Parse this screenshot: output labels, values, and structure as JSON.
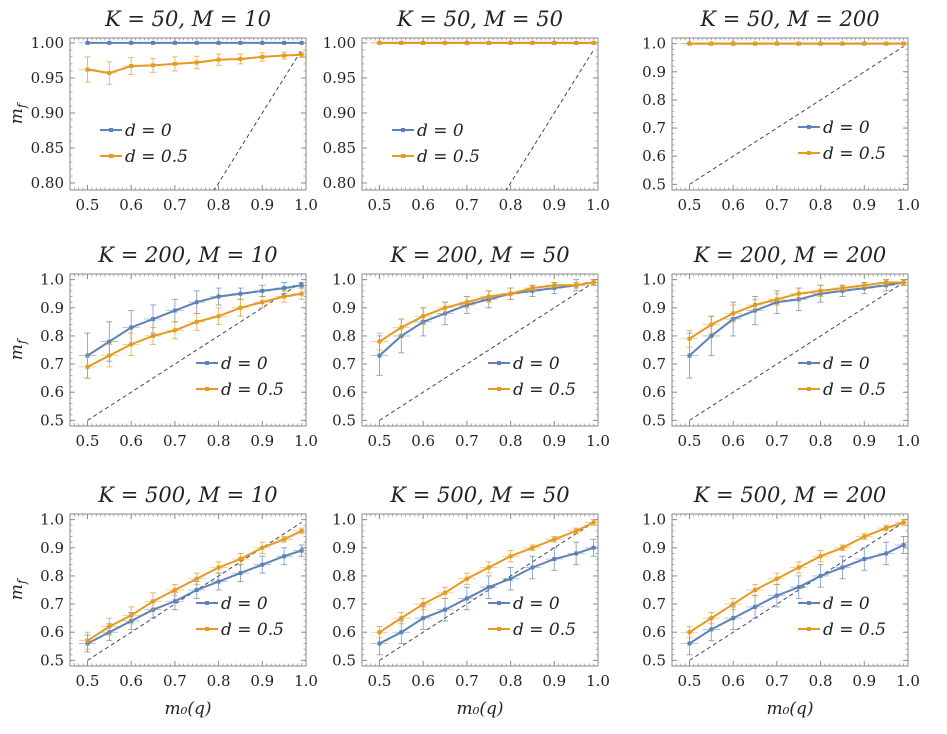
{
  "colors": {
    "d0": "#5d82b7",
    "d05": "#e59a22",
    "frame": "#8a8a8a",
    "diag": "#333333"
  },
  "chart_data": [
    {
      "type": "line",
      "title": "K = 50, M = 10",
      "ylabel": "m_f",
      "xlabel": "",
      "xlim": [
        0.46,
        1.0
      ],
      "ylim": [
        0.79,
        1.007
      ],
      "xticks": [
        "0.5",
        "0.6",
        "0.7",
        "0.8",
        "0.9",
        "1.0"
      ],
      "yticks": [
        "0.80",
        "0.85",
        "0.90",
        "0.95",
        "1.00"
      ],
      "x": [
        0.5,
        0.55,
        0.6,
        0.65,
        0.7,
        0.75,
        0.8,
        0.85,
        0.9,
        0.95,
        0.99
      ],
      "series": [
        {
          "name": "d = 0",
          "color": "#5d82b7",
          "values": [
            1.0,
            1.0,
            1.0,
            1.0,
            1.0,
            1.0,
            1.0,
            1.0,
            1.0,
            1.0,
            1.0
          ],
          "err": [
            0,
            0,
            0,
            0,
            0,
            0,
            0,
            0,
            0,
            0,
            0
          ]
        },
        {
          "name": "d = 0.5",
          "color": "#e59a22",
          "values": [
            0.962,
            0.957,
            0.967,
            0.968,
            0.97,
            0.972,
            0.976,
            0.977,
            0.98,
            0.982,
            0.983
          ],
          "err": [
            0.018,
            0.016,
            0.012,
            0.01,
            0.01,
            0.009,
            0.008,
            0.007,
            0.006,
            0.005,
            0.004
          ]
        }
      ],
      "legend": [
        "d = 0",
        "d = 0.5"
      ],
      "legend_position": "lower-left",
      "diagonal": true
    },
    {
      "type": "line",
      "title": "K = 50, M = 50",
      "ylabel": "",
      "xlabel": "",
      "xlim": [
        0.46,
        1.0
      ],
      "ylim": [
        0.79,
        1.007
      ],
      "xticks": [
        "0.5",
        "0.6",
        "0.7",
        "0.8",
        "0.9",
        "1.0"
      ],
      "yticks": [
        "0.80",
        "0.85",
        "0.90",
        "0.95",
        "1.00"
      ],
      "x": [
        0.5,
        0.55,
        0.6,
        0.65,
        0.7,
        0.75,
        0.8,
        0.85,
        0.9,
        0.95,
        0.99
      ],
      "series": [
        {
          "name": "d = 0",
          "color": "#5d82b7",
          "values": [
            1.0,
            1.0,
            1.0,
            1.0,
            1.0,
            1.0,
            1.0,
            1.0,
            1.0,
            1.0,
            1.0
          ],
          "err": [
            0,
            0,
            0,
            0,
            0,
            0,
            0,
            0,
            0,
            0,
            0
          ]
        },
        {
          "name": "d = 0.5",
          "color": "#e59a22",
          "values": [
            1.0,
            1.0,
            1.0,
            1.0,
            1.0,
            1.0,
            1.0,
            1.0,
            1.0,
            1.0,
            1.0
          ],
          "err": [
            0.001,
            0.001,
            0.001,
            0.001,
            0.001,
            0.001,
            0.001,
            0.001,
            0.001,
            0.001,
            0.001
          ]
        }
      ],
      "legend": [
        "d = 0",
        "d = 0.5"
      ],
      "legend_position": "lower-left",
      "diagonal": true
    },
    {
      "type": "line",
      "title": "K = 50, M = 200",
      "ylabel": "",
      "xlabel": "",
      "xlim": [
        0.46,
        1.0
      ],
      "ylim": [
        0.48,
        1.02
      ],
      "xticks": [
        "0.5",
        "0.6",
        "0.7",
        "0.8",
        "0.9",
        "1.0"
      ],
      "yticks": [
        "0.5",
        "0.6",
        "0.7",
        "0.8",
        "0.9",
        "1.0"
      ],
      "x": [
        0.5,
        0.55,
        0.6,
        0.65,
        0.7,
        0.75,
        0.8,
        0.85,
        0.9,
        0.95,
        0.99
      ],
      "series": [
        {
          "name": "d = 0",
          "color": "#5d82b7",
          "values": [
            1.0,
            1.0,
            1.0,
            1.0,
            1.0,
            1.0,
            1.0,
            1.0,
            1.0,
            1.0,
            1.0
          ],
          "err": [
            0,
            0,
            0,
            0,
            0,
            0,
            0,
            0,
            0,
            0,
            0
          ]
        },
        {
          "name": "d = 0.5",
          "color": "#e59a22",
          "values": [
            1.0,
            1.0,
            1.0,
            1.0,
            1.0,
            1.0,
            1.0,
            1.0,
            1.0,
            1.0,
            1.0
          ],
          "err": [
            0.002,
            0.002,
            0.002,
            0.002,
            0.002,
            0.002,
            0.002,
            0.002,
            0.002,
            0.002,
            0.002
          ]
        }
      ],
      "legend": [
        "d = 0",
        "d = 0.5"
      ],
      "legend_position": "lower-right",
      "diagonal": true
    },
    {
      "type": "line",
      "title": "K = 200, M = 10",
      "ylabel": "m_f",
      "xlabel": "",
      "xlim": [
        0.46,
        1.0
      ],
      "ylim": [
        0.48,
        1.02
      ],
      "xticks": [
        "0.5",
        "0.6",
        "0.7",
        "0.8",
        "0.9",
        "1.0"
      ],
      "yticks": [
        "0.5",
        "0.6",
        "0.7",
        "0.8",
        "0.9",
        "1.0"
      ],
      "x": [
        0.5,
        0.55,
        0.6,
        0.65,
        0.7,
        0.75,
        0.8,
        0.85,
        0.9,
        0.95,
        0.99
      ],
      "series": [
        {
          "name": "d = 0",
          "color": "#5d82b7",
          "values": [
            0.73,
            0.78,
            0.83,
            0.86,
            0.89,
            0.92,
            0.94,
            0.95,
            0.96,
            0.97,
            0.98
          ],
          "err": [
            0.08,
            0.07,
            0.06,
            0.05,
            0.04,
            0.04,
            0.03,
            0.02,
            0.02,
            0.02,
            0.01
          ]
        },
        {
          "name": "d = 0.5",
          "color": "#e59a22",
          "values": [
            0.69,
            0.73,
            0.77,
            0.8,
            0.82,
            0.85,
            0.87,
            0.9,
            0.92,
            0.94,
            0.95
          ],
          "err": [
            0.04,
            0.04,
            0.04,
            0.03,
            0.03,
            0.03,
            0.03,
            0.03,
            0.02,
            0.02,
            0.02
          ]
        }
      ],
      "legend": [
        "d = 0",
        "d = 0.5"
      ],
      "legend_position": "lower-right",
      "diagonal": true
    },
    {
      "type": "line",
      "title": "K = 200, M = 50",
      "ylabel": "",
      "xlabel": "",
      "xlim": [
        0.46,
        1.0
      ],
      "ylim": [
        0.48,
        1.02
      ],
      "xticks": [
        "0.5",
        "0.6",
        "0.7",
        "0.8",
        "0.9",
        "1.0"
      ],
      "yticks": [
        "0.5",
        "0.6",
        "0.7",
        "0.8",
        "0.9",
        "1.0"
      ],
      "x": [
        0.5,
        0.55,
        0.6,
        0.65,
        0.7,
        0.75,
        0.8,
        0.85,
        0.9,
        0.95,
        0.99
      ],
      "series": [
        {
          "name": "d = 0",
          "color": "#5d82b7",
          "values": [
            0.73,
            0.8,
            0.85,
            0.88,
            0.91,
            0.93,
            0.95,
            0.96,
            0.97,
            0.98,
            0.99
          ],
          "err": [
            0.07,
            0.06,
            0.05,
            0.04,
            0.03,
            0.03,
            0.02,
            0.02,
            0.02,
            0.02,
            0.01
          ]
        },
        {
          "name": "d = 0.5",
          "color": "#e59a22",
          "values": [
            0.78,
            0.83,
            0.87,
            0.9,
            0.92,
            0.94,
            0.95,
            0.97,
            0.98,
            0.98,
            0.99
          ],
          "err": [
            0.03,
            0.03,
            0.03,
            0.02,
            0.02,
            0.02,
            0.02,
            0.01,
            0.01,
            0.01,
            0.01
          ]
        }
      ],
      "legend": [
        "d = 0",
        "d = 0.5"
      ],
      "legend_position": "lower-right",
      "diagonal": true
    },
    {
      "type": "line",
      "title": "K = 200, M = 200",
      "ylabel": "",
      "xlabel": "",
      "xlim": [
        0.46,
        1.0
      ],
      "ylim": [
        0.48,
        1.02
      ],
      "xticks": [
        "0.5",
        "0.6",
        "0.7",
        "0.8",
        "0.9",
        "1.0"
      ],
      "yticks": [
        "0.5",
        "0.6",
        "0.7",
        "0.8",
        "0.9",
        "1.0"
      ],
      "x": [
        0.5,
        0.55,
        0.6,
        0.65,
        0.7,
        0.75,
        0.8,
        0.85,
        0.9,
        0.95,
        0.99
      ],
      "series": [
        {
          "name": "d = 0",
          "color": "#5d82b7",
          "values": [
            0.73,
            0.8,
            0.86,
            0.89,
            0.92,
            0.93,
            0.95,
            0.96,
            0.97,
            0.98,
            0.99
          ],
          "err": [
            0.08,
            0.07,
            0.06,
            0.05,
            0.04,
            0.04,
            0.03,
            0.02,
            0.02,
            0.02,
            0.01
          ]
        },
        {
          "name": "d = 0.5",
          "color": "#e59a22",
          "values": [
            0.79,
            0.84,
            0.88,
            0.91,
            0.93,
            0.95,
            0.96,
            0.97,
            0.98,
            0.99,
            0.99
          ],
          "err": [
            0.03,
            0.03,
            0.03,
            0.02,
            0.02,
            0.02,
            0.02,
            0.01,
            0.01,
            0.01,
            0.01
          ]
        }
      ],
      "legend": [
        "d = 0",
        "d = 0.5"
      ],
      "legend_position": "lower-right",
      "diagonal": true
    },
    {
      "type": "line",
      "title": "K = 500, M = 10",
      "ylabel": "m_f",
      "xlabel": "m_0(q)",
      "xlim": [
        0.46,
        1.0
      ],
      "ylim": [
        0.48,
        1.02
      ],
      "xticks": [
        "0.5",
        "0.6",
        "0.7",
        "0.8",
        "0.9",
        "1.0"
      ],
      "yticks": [
        "0.5",
        "0.6",
        "0.7",
        "0.8",
        "0.9",
        "1.0"
      ],
      "x": [
        0.5,
        0.55,
        0.6,
        0.65,
        0.7,
        0.75,
        0.8,
        0.85,
        0.9,
        0.95,
        0.99
      ],
      "series": [
        {
          "name": "d = 0",
          "color": "#5d82b7",
          "values": [
            0.56,
            0.6,
            0.64,
            0.68,
            0.71,
            0.75,
            0.78,
            0.81,
            0.84,
            0.87,
            0.89
          ],
          "err": [
            0.03,
            0.03,
            0.03,
            0.03,
            0.03,
            0.03,
            0.03,
            0.03,
            0.03,
            0.03,
            0.02
          ]
        },
        {
          "name": "d = 0.5",
          "color": "#e59a22",
          "values": [
            0.57,
            0.62,
            0.66,
            0.71,
            0.75,
            0.79,
            0.83,
            0.86,
            0.9,
            0.93,
            0.96
          ],
          "err": [
            0.03,
            0.03,
            0.03,
            0.03,
            0.02,
            0.02,
            0.02,
            0.02,
            0.02,
            0.01,
            0.01
          ]
        }
      ],
      "legend": [
        "d = 0",
        "d = 0.5"
      ],
      "legend_position": "lower-right",
      "diagonal": true
    },
    {
      "type": "line",
      "title": "K = 500, M = 50",
      "ylabel": "",
      "xlabel": "m_0(q)",
      "xlim": [
        0.46,
        1.0
      ],
      "ylim": [
        0.48,
        1.02
      ],
      "xticks": [
        "0.5",
        "0.6",
        "0.7",
        "0.8",
        "0.9",
        "1.0"
      ],
      "yticks": [
        "0.5",
        "0.6",
        "0.7",
        "0.8",
        "0.9",
        "1.0"
      ],
      "x": [
        0.5,
        0.55,
        0.6,
        0.65,
        0.7,
        0.75,
        0.8,
        0.85,
        0.9,
        0.95,
        0.99
      ],
      "series": [
        {
          "name": "d = 0",
          "color": "#5d82b7",
          "values": [
            0.56,
            0.6,
            0.65,
            0.68,
            0.72,
            0.76,
            0.79,
            0.83,
            0.86,
            0.88,
            0.9
          ],
          "err": [
            0.04,
            0.04,
            0.04,
            0.04,
            0.04,
            0.04,
            0.04,
            0.04,
            0.04,
            0.04,
            0.03
          ]
        },
        {
          "name": "d = 0.5",
          "color": "#e59a22",
          "values": [
            0.6,
            0.65,
            0.7,
            0.74,
            0.79,
            0.83,
            0.87,
            0.9,
            0.93,
            0.96,
            0.99
          ],
          "err": [
            0.02,
            0.02,
            0.02,
            0.02,
            0.02,
            0.02,
            0.02,
            0.01,
            0.01,
            0.01,
            0.01
          ]
        }
      ],
      "legend": [
        "d = 0",
        "d = 0.5"
      ],
      "legend_position": "lower-right",
      "diagonal": true
    },
    {
      "type": "line",
      "title": "K = 500, M = 200",
      "ylabel": "",
      "xlabel": "m_0(q)",
      "xlim": [
        0.46,
        1.0
      ],
      "ylim": [
        0.48,
        1.02
      ],
      "xticks": [
        "0.5",
        "0.6",
        "0.7",
        "0.8",
        "0.9",
        "1.0"
      ],
      "yticks": [
        "0.5",
        "0.6",
        "0.7",
        "0.8",
        "0.9",
        "1.0"
      ],
      "x": [
        0.5,
        0.55,
        0.6,
        0.65,
        0.7,
        0.75,
        0.8,
        0.85,
        0.9,
        0.95,
        0.99
      ],
      "series": [
        {
          "name": "d = 0",
          "color": "#5d82b7",
          "values": [
            0.56,
            0.61,
            0.65,
            0.69,
            0.73,
            0.76,
            0.8,
            0.83,
            0.86,
            0.88,
            0.91
          ],
          "err": [
            0.04,
            0.04,
            0.04,
            0.04,
            0.04,
            0.04,
            0.04,
            0.04,
            0.04,
            0.04,
            0.03
          ]
        },
        {
          "name": "d = 0.5",
          "color": "#e59a22",
          "values": [
            0.6,
            0.65,
            0.7,
            0.75,
            0.79,
            0.83,
            0.87,
            0.9,
            0.94,
            0.97,
            0.99
          ],
          "err": [
            0.02,
            0.02,
            0.02,
            0.02,
            0.02,
            0.02,
            0.02,
            0.01,
            0.01,
            0.01,
            0.01
          ]
        }
      ],
      "legend": [
        "d = 0",
        "d = 0.5"
      ],
      "legend_position": "lower-right",
      "diagonal": true
    }
  ]
}
